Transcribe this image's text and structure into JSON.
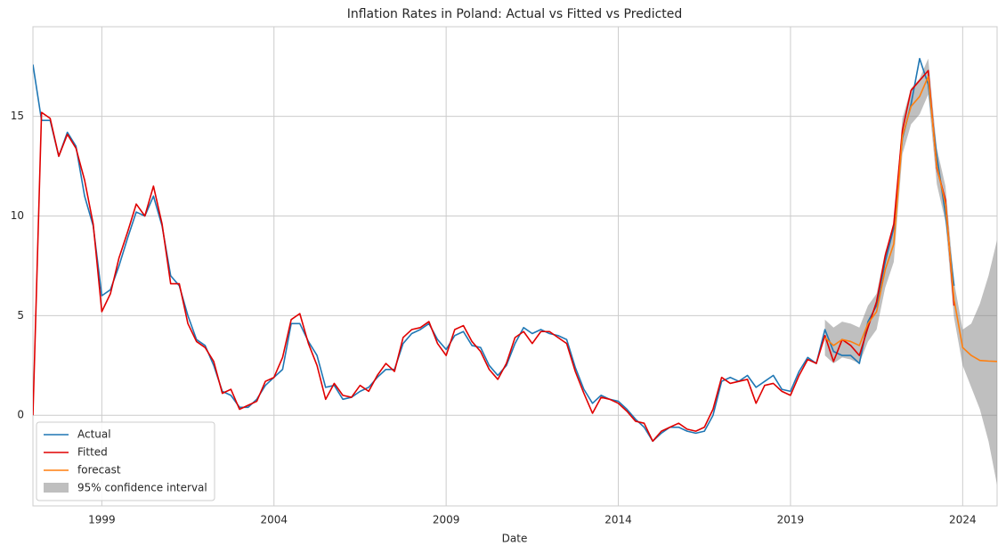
{
  "chart_data": {
    "type": "line",
    "title": "Inflation Rates in Poland: Actual vs Fitted vs Predicted",
    "x_label": "Date",
    "x": [
      1997,
      1997.25,
      1997.5,
      1997.75,
      1998,
      1998.25,
      1998.5,
      1998.75,
      1999,
      1999.25,
      1999.5,
      1999.75,
      2000,
      2000.25,
      2000.5,
      2000.75,
      2001,
      2001.25,
      2001.5,
      2001.75,
      2002,
      2002.25,
      2002.5,
      2002.75,
      2003,
      2003.25,
      2003.5,
      2003.75,
      2004,
      2004.25,
      2004.5,
      2004.75,
      2005,
      2005.25,
      2005.5,
      2005.75,
      2006,
      2006.25,
      2006.5,
      2006.75,
      2007,
      2007.25,
      2007.5,
      2007.75,
      2008,
      2008.25,
      2008.5,
      2008.75,
      2009,
      2009.25,
      2009.5,
      2009.75,
      2010,
      2010.25,
      2010.5,
      2010.75,
      2011,
      2011.25,
      2011.5,
      2011.75,
      2012,
      2012.25,
      2012.5,
      2012.75,
      2013,
      2013.25,
      2013.5,
      2013.75,
      2014,
      2014.25,
      2014.5,
      2014.75,
      2015,
      2015.25,
      2015.5,
      2015.75,
      2016,
      2016.25,
      2016.5,
      2016.75,
      2017,
      2017.25,
      2017.5,
      2017.75,
      2018,
      2018.25,
      2018.5,
      2018.75,
      2019,
      2019.25,
      2019.5,
      2019.75,
      2020,
      2020.25,
      2020.5,
      2020.75,
      2021,
      2021.25,
      2021.5,
      2021.75,
      2022,
      2022.25,
      2022.5,
      2022.75,
      2023,
      2023.25,
      2023.5,
      2023.75,
      2024,
      2024.25,
      2024.5,
      2024.75,
      2025
    ],
    "series": [
      {
        "name": "Actual",
        "color": "#1f77b4",
        "values": [
          17.6,
          14.8,
          14.8,
          13.0,
          14.2,
          13.5,
          11.0,
          9.5,
          6.0,
          6.3,
          7.5,
          8.9,
          10.2,
          10.0,
          11.0,
          9.5,
          7.0,
          6.5,
          5.0,
          3.8,
          3.5,
          2.5,
          1.2,
          1.0,
          0.4,
          0.4,
          0.8,
          1.5,
          1.9,
          2.3,
          4.6,
          4.6,
          3.7,
          3.0,
          1.4,
          1.5,
          0.8,
          0.9,
          1.2,
          1.4,
          1.9,
          2.3,
          2.3,
          3.6,
          4.1,
          4.3,
          4.6,
          3.8,
          3.3,
          4.0,
          4.2,
          3.5,
          3.4,
          2.5,
          2.0,
          2.5,
          3.6,
          4.4,
          4.1,
          4.3,
          4.1,
          4.0,
          3.8,
          2.4,
          1.3,
          0.6,
          1.0,
          0.8,
          0.7,
          0.3,
          -0.2,
          -0.6,
          -1.3,
          -0.9,
          -0.6,
          -0.6,
          -0.8,
          -0.9,
          -0.8,
          0.0,
          1.7,
          1.9,
          1.7,
          2.0,
          1.4,
          1.7,
          2.0,
          1.3,
          1.2,
          2.2,
          2.9,
          2.6,
          4.3,
          3.2,
          3.0,
          3.0,
          2.6,
          4.7,
          5.5,
          7.7,
          9.4,
          13.9,
          15.6,
          17.9,
          16.6,
          13.0,
          10.1,
          6.5,
          null,
          null,
          null,
          null,
          null
        ]
      },
      {
        "name": "Fitted",
        "color": "#e00000",
        "values": [
          0,
          15.2,
          14.9,
          13.0,
          14.1,
          13.4,
          11.8,
          9.6,
          5.2,
          6.1,
          7.9,
          9.2,
          10.6,
          10.0,
          11.5,
          9.6,
          6.6,
          6.6,
          4.6,
          3.7,
          3.4,
          2.7,
          1.1,
          1.3,
          0.3,
          0.5,
          0.7,
          1.7,
          1.9,
          2.9,
          4.8,
          5.1,
          3.6,
          2.5,
          0.8,
          1.6,
          1.0,
          0.9,
          1.5,
          1.2,
          2.0,
          2.6,
          2.2,
          3.9,
          4.3,
          4.4,
          4.7,
          3.6,
          3.0,
          4.3,
          4.5,
          3.7,
          3.2,
          2.3,
          1.8,
          2.6,
          3.9,
          4.2,
          3.6,
          4.2,
          4.2,
          3.9,
          3.6,
          2.2,
          1.1,
          0.1,
          0.9,
          0.8,
          0.6,
          0.2,
          -0.3,
          -0.4,
          -1.3,
          -0.8,
          -0.6,
          -0.4,
          -0.7,
          -0.8,
          -0.6,
          0.3,
          1.9,
          1.6,
          1.7,
          1.8,
          0.6,
          1.5,
          1.6,
          1.2,
          1.0,
          2.0,
          2.8,
          2.6,
          4.0,
          2.7,
          3.8,
          3.5,
          3.0,
          4.4,
          5.7,
          8.0,
          9.6,
          14.3,
          16.3,
          16.8,
          17.3,
          12.4,
          10.8,
          5.5,
          null,
          null,
          null,
          null,
          null
        ]
      },
      {
        "name": "forecast",
        "color": "#ff7f0e",
        "values": [
          null,
          null,
          null,
          null,
          null,
          null,
          null,
          null,
          null,
          null,
          null,
          null,
          null,
          null,
          null,
          null,
          null,
          null,
          null,
          null,
          null,
          null,
          null,
          null,
          null,
          null,
          null,
          null,
          null,
          null,
          null,
          null,
          null,
          null,
          null,
          null,
          null,
          null,
          null,
          null,
          null,
          null,
          null,
          null,
          null,
          null,
          null,
          null,
          null,
          null,
          null,
          null,
          null,
          null,
          null,
          null,
          null,
          null,
          null,
          null,
          null,
          null,
          null,
          null,
          null,
          null,
          null,
          null,
          null,
          null,
          null,
          null,
          null,
          null,
          null,
          null,
          null,
          null,
          null,
          null,
          null,
          null,
          null,
          null,
          null,
          null,
          null,
          null,
          null,
          null,
          null,
          null,
          3.9,
          3.5,
          3.8,
          3.7,
          3.5,
          4.6,
          5.2,
          7.3,
          8.6,
          14.0,
          15.5,
          16.0,
          17.0,
          12.5,
          10.6,
          5.8,
          3.4,
          3.0,
          2.75,
          2.72,
          2.7
        ]
      }
    ],
    "band": {
      "name": "95% confidence interval",
      "color": "#808080",
      "lower": [
        null,
        null,
        null,
        null,
        null,
        null,
        null,
        null,
        null,
        null,
        null,
        null,
        null,
        null,
        null,
        null,
        null,
        null,
        null,
        null,
        null,
        null,
        null,
        null,
        null,
        null,
        null,
        null,
        null,
        null,
        null,
        null,
        null,
        null,
        null,
        null,
        null,
        null,
        null,
        null,
        null,
        null,
        null,
        null,
        null,
        null,
        null,
        null,
        null,
        null,
        null,
        null,
        null,
        null,
        null,
        null,
        null,
        null,
        null,
        null,
        null,
        null,
        null,
        null,
        null,
        null,
        null,
        null,
        null,
        null,
        null,
        null,
        null,
        null,
        null,
        null,
        null,
        null,
        null,
        null,
        null,
        null,
        null,
        null,
        null,
        null,
        null,
        null,
        null,
        null,
        null,
        null,
        3.0,
        2.6,
        2.9,
        2.8,
        2.6,
        3.7,
        4.3,
        6.4,
        7.7,
        13.1,
        14.6,
        15.1,
        16.1,
        11.6,
        9.7,
        4.9,
        2.5,
        1.4,
        0.3,
        -1.3,
        -3.5
      ],
      "upper": [
        null,
        null,
        null,
        null,
        null,
        null,
        null,
        null,
        null,
        null,
        null,
        null,
        null,
        null,
        null,
        null,
        null,
        null,
        null,
        null,
        null,
        null,
        null,
        null,
        null,
        null,
        null,
        null,
        null,
        null,
        null,
        null,
        null,
        null,
        null,
        null,
        null,
        null,
        null,
        null,
        null,
        null,
        null,
        null,
        null,
        null,
        null,
        null,
        null,
        null,
        null,
        null,
        null,
        null,
        null,
        null,
        null,
        null,
        null,
        null,
        null,
        null,
        null,
        null,
        null,
        null,
        null,
        null,
        null,
        null,
        null,
        null,
        null,
        null,
        null,
        null,
        null,
        null,
        null,
        null,
        null,
        null,
        null,
        null,
        null,
        null,
        null,
        null,
        null,
        null,
        null,
        null,
        4.8,
        4.4,
        4.7,
        4.6,
        4.4,
        5.5,
        6.1,
        8.2,
        9.5,
        14.9,
        16.4,
        16.9,
        17.9,
        13.4,
        11.5,
        6.7,
        4.3,
        4.6,
        5.6,
        7.0,
        8.8
      ]
    },
    "xlim": [
      1997,
      2025
    ],
    "xticks": [
      1999,
      2004,
      2009,
      2014,
      2019,
      2024
    ],
    "ylim": [
      -4.55,
      19.5
    ],
    "yticks": [
      0,
      5,
      10,
      15
    ],
    "grid": true,
    "legend": "lower left"
  }
}
